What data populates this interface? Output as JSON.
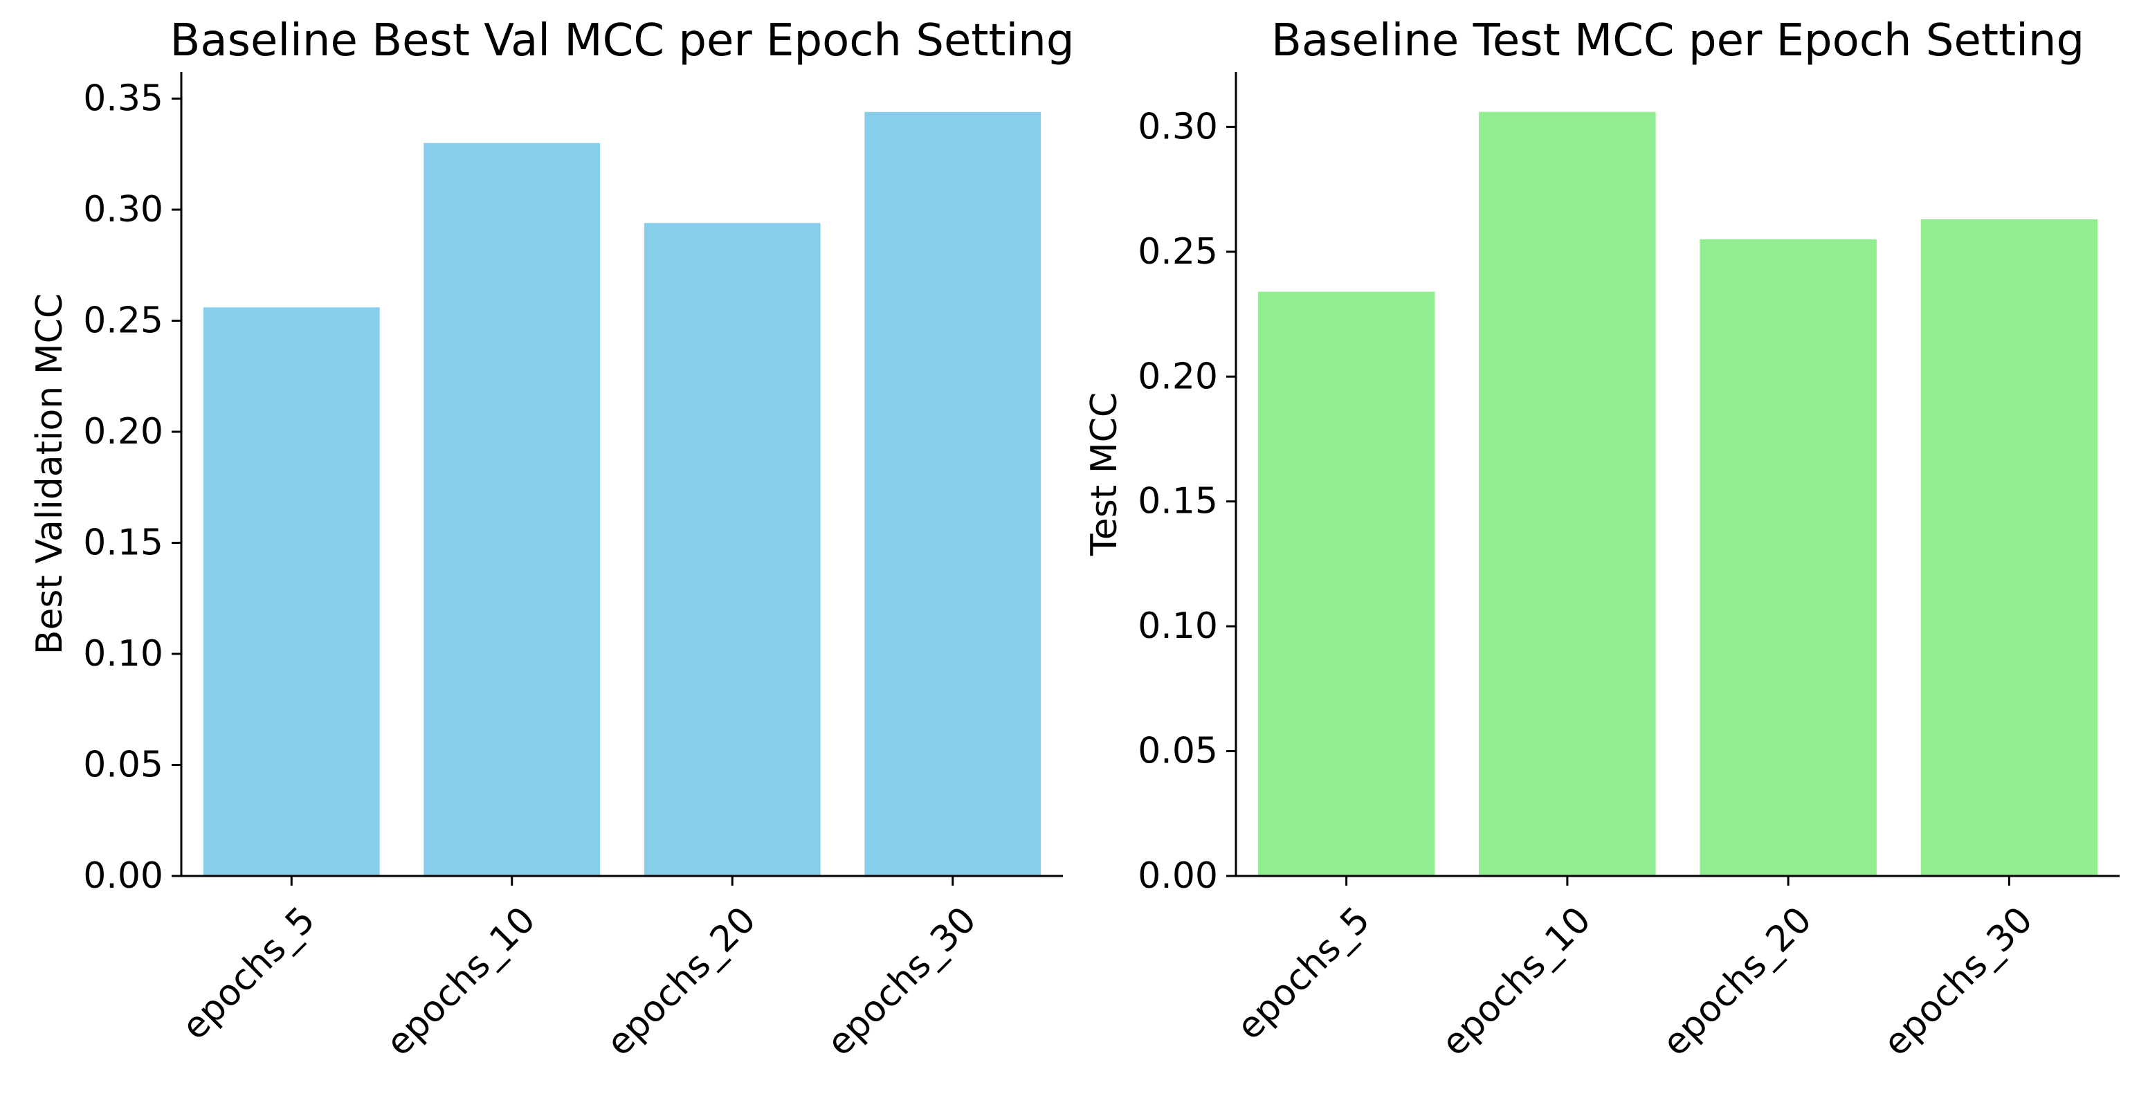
{
  "chart_data": [
    {
      "type": "bar",
      "title": "Baseline Best Val MCC per Epoch Setting",
      "xlabel": "",
      "ylabel": "Best Validation MCC",
      "categories": [
        "epochs_5",
        "epochs_10",
        "epochs_20",
        "epochs_30"
      ],
      "values": [
        0.256,
        0.33,
        0.294,
        0.344
      ],
      "ylim": [
        0,
        0.362
      ],
      "yticks": [
        "0.00",
        "0.05",
        "0.10",
        "0.15",
        "0.20",
        "0.25",
        "0.30",
        "0.35"
      ],
      "color": "#87ceeb",
      "grid": false
    },
    {
      "type": "bar",
      "title": "Baseline Test MCC per Epoch Setting",
      "xlabel": "",
      "ylabel": "Test MCC",
      "categories": [
        "epochs_5",
        "epochs_10",
        "epochs_20",
        "epochs_30"
      ],
      "values": [
        0.234,
        0.306,
        0.255,
        0.263
      ],
      "ylim": [
        0,
        0.322
      ],
      "yticks": [
        "0.00",
        "0.05",
        "0.10",
        "0.15",
        "0.20",
        "0.25",
        "0.30"
      ],
      "color": "#90ee90",
      "grid": false
    }
  ]
}
